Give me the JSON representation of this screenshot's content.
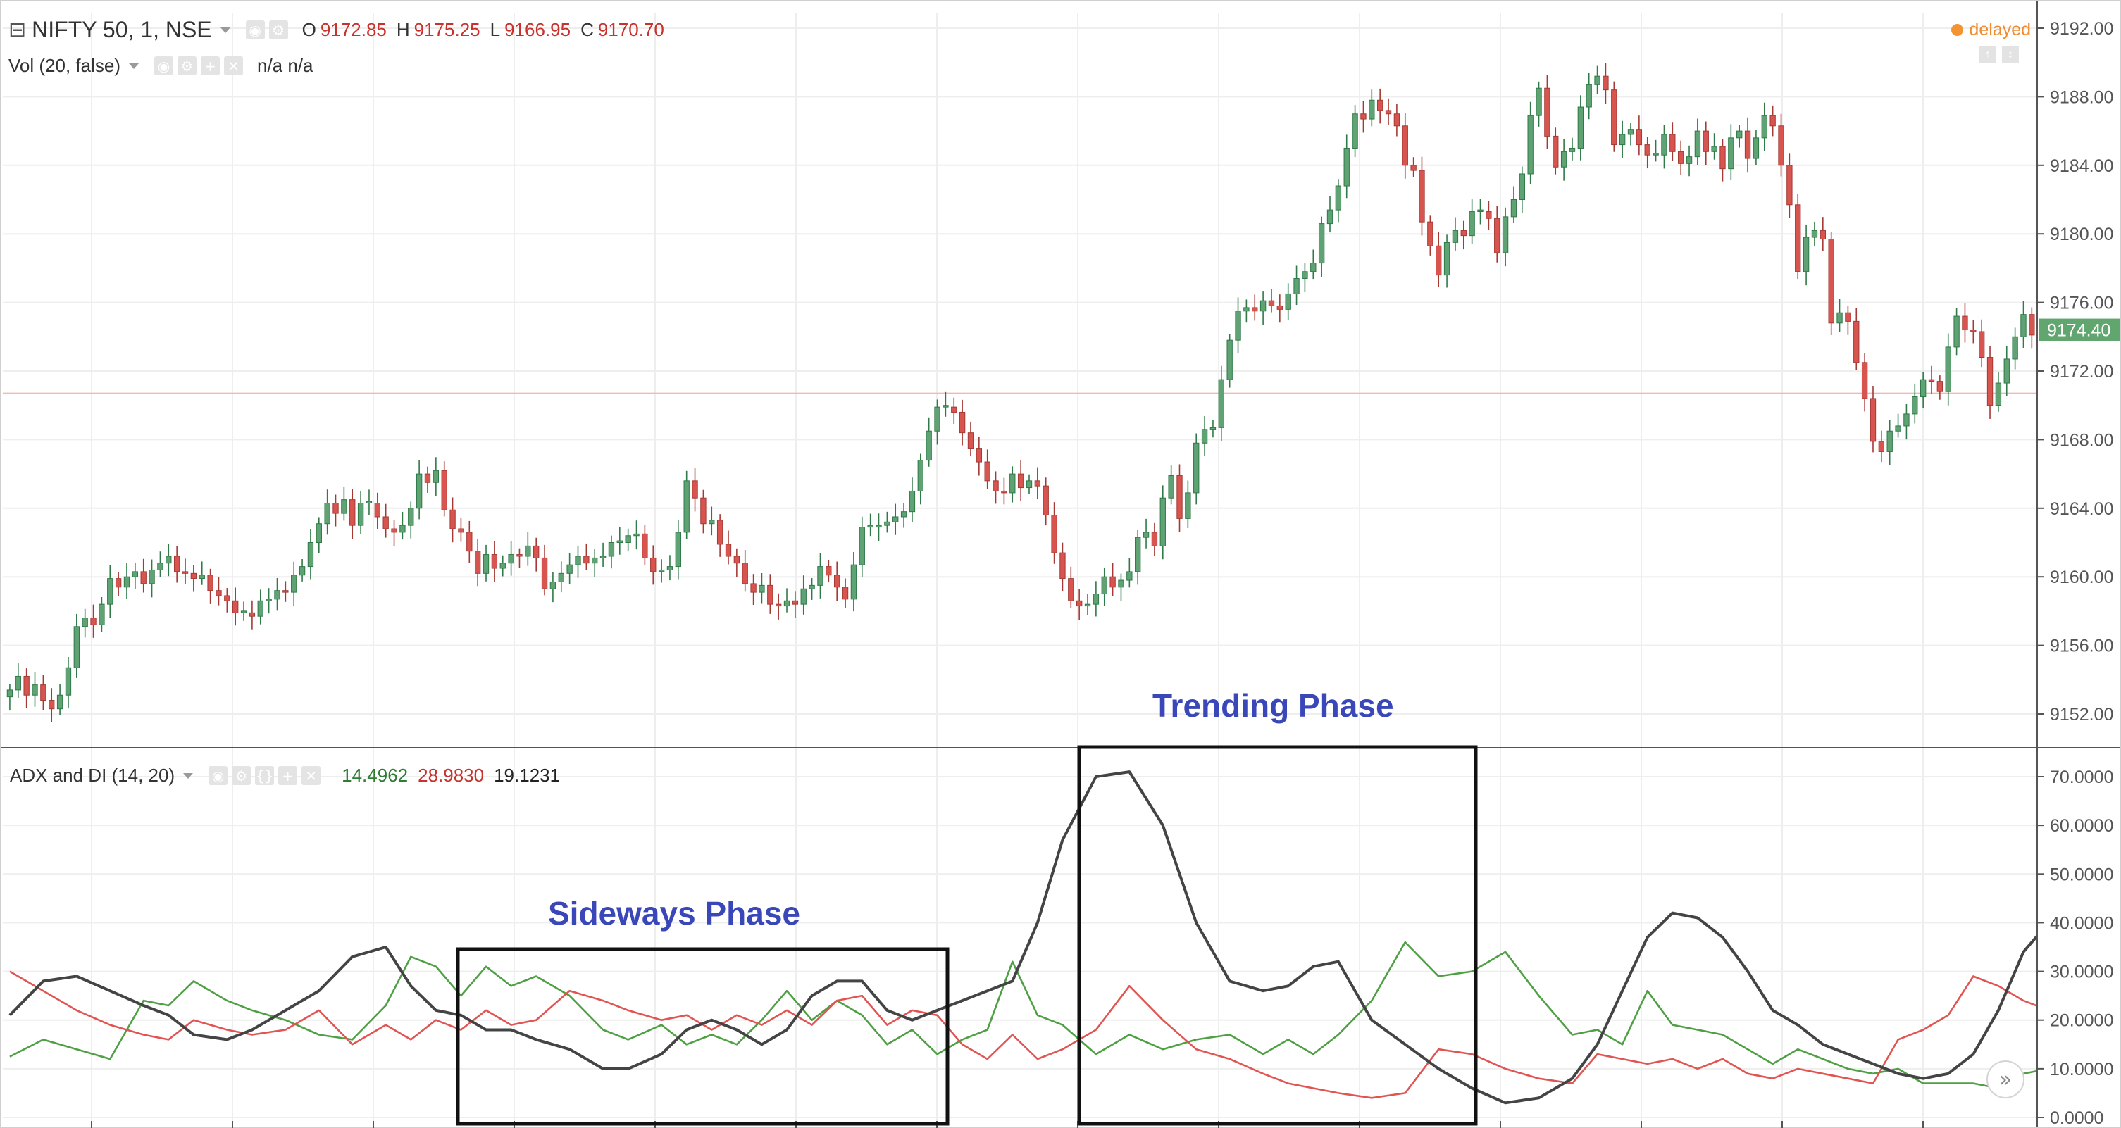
{
  "symbol": {
    "collapse_icon": "minus-box-icon",
    "title": "NIFTY 50, 1, NSE",
    "ohlc": [
      {
        "k": "O",
        "v": "9172.85"
      },
      {
        "k": "H",
        "v": "9175.25"
      },
      {
        "k": "L",
        "v": "9166.95"
      },
      {
        "k": "C",
        "v": "9170.70"
      }
    ],
    "status": "delayed"
  },
  "volume": {
    "label": "Vol (20, false)",
    "values": "n/a n/a"
  },
  "adx": {
    "label": "ADX and DI (14, 20)",
    "plus_di": "14.4962",
    "minus_di": "28.9830",
    "adx": "19.1231"
  },
  "colors": {
    "up": "#5fa273",
    "up_dark": "#2f7a48",
    "down": "#d8544f",
    "down_dark": "#a53a35",
    "plus_di": "#4f9f44",
    "minus_di": "#e05552",
    "adx": "#444444",
    "grid": "#eeeeee",
    "axis_text": "#555555",
    "last_price_bg": "#62a66f",
    "reference_line": "#f2b8b8",
    "annotation": "#3a47b8",
    "value_green": "#2e7d32",
    "value_red": "#c8312c"
  },
  "annotations": {
    "sideways": "Sideways Phase",
    "trending": "Trending Phase"
  },
  "forward_icon": "double-chevron-right-icon",
  "chart_data": [
    {
      "type": "candlestick",
      "title": "NIFTY 50, 1, NSE",
      "ylim": [
        9150,
        9192
      ],
      "y_ticks": [
        "9152.00",
        "9156.00",
        "9160.00",
        "9164.00",
        "9168.00",
        "9172.00",
        "9176.00",
        "9180.00",
        "9184.00",
        "9188.00",
        "9192.00"
      ],
      "last_price": "9174.40",
      "reference_price": 9170.7,
      "close": [
        9153.4,
        9154.2,
        9153.1,
        9153.7,
        9152.8,
        9152.3,
        9153.1,
        9154.7,
        9157.1,
        9157.6,
        9157.2,
        9158.4,
        9159.9,
        9159.4,
        9160.0,
        9160.3,
        9159.6,
        9160.4,
        9160.8,
        9161.2,
        9160.3,
        9160.2,
        9159.9,
        9160.1,
        9159.2,
        9158.9,
        9158.6,
        9157.9,
        9157.9,
        9157.7,
        9158.6,
        9158.7,
        9159.2,
        9159.1,
        9160.1,
        9160.6,
        9162.0,
        9163.1,
        9164.3,
        9163.7,
        9164.5,
        9163.0,
        9164.3,
        9164.3,
        9163.5,
        9162.8,
        9162.6,
        9163.0,
        9164.0,
        9166.0,
        9165.5,
        9166.2,
        9163.9,
        9162.8,
        9162.6,
        9161.5,
        9160.2,
        9161.3,
        9160.5,
        9160.8,
        9161.3,
        9161.2,
        9161.8,
        9161.1,
        9159.3,
        9159.7,
        9160.2,
        9160.7,
        9161.2,
        9160.8,
        9161.1,
        9161.2,
        9162.0,
        9162.0,
        9162.4,
        9162.5,
        9161.1,
        9160.3,
        9160.4,
        9160.6,
        9162.6,
        9165.6,
        9164.6,
        9163.1,
        9163.3,
        9161.9,
        9161.2,
        9160.8,
        9159.6,
        9159.1,
        9159.5,
        9158.4,
        9158.3,
        9158.6,
        9158.4,
        9159.3,
        9159.5,
        9160.6,
        9160.1,
        9159.4,
        9158.7,
        9160.7,
        9162.9,
        9162.9,
        9163.0,
        9163.2,
        9163.5,
        9163.8,
        9165.0,
        9166.8,
        9168.5,
        9169.9,
        9169.9,
        9169.6,
        9168.4,
        9167.5,
        9166.7,
        9165.6,
        9165.0,
        9164.9,
        9166.0,
        9165.2,
        9165.6,
        9165.3,
        9163.6,
        9161.4,
        9159.9,
        9158.6,
        9158.3,
        9158.4,
        9159.0,
        9160.0,
        9159.4,
        9159.8,
        9160.3,
        9162.3,
        9162.6,
        9161.8,
        9164.6,
        9165.9,
        9163.4,
        9164.9,
        9167.8,
        9168.6,
        9168.7,
        9171.5,
        9173.8,
        9175.5,
        9175.7,
        9175.5,
        9176.1,
        9175.8,
        9175.6,
        9176.5,
        9177.4,
        9177.8,
        9178.3,
        9180.6,
        9181.4,
        9182.8,
        9185.0,
        9187.0,
        9186.7,
        9187.8,
        9187.2,
        9187.0,
        9186.3,
        9184.0,
        9183.7,
        9180.7,
        9179.3,
        9177.6,
        9179.5,
        9180.2,
        9179.9,
        9181.3,
        9181.3,
        9180.9,
        9178.9,
        9181.0,
        9182.0,
        9183.5,
        9186.9,
        9188.5,
        9185.7,
        9183.9,
        9184.8,
        9185.0,
        9187.4,
        9188.7,
        9189.2,
        9188.4,
        9185.2,
        9185.8,
        9186.1,
        9185.2,
        9184.6,
        9184.6,
        9185.8,
        9184.8,
        9184.1,
        9184.5,
        9186.0,
        9184.8,
        9185.1,
        9183.8,
        9185.6,
        9186.0,
        9184.4,
        9185.6,
        9186.9,
        9186.3,
        9184.0,
        9181.7,
        9177.8,
        9179.8,
        9180.2,
        9179.7,
        9174.8,
        9175.4,
        9174.9,
        9172.5,
        9170.4,
        9167.9,
        9167.3,
        9168.5,
        9168.8,
        9169.5,
        9170.5,
        9171.5,
        9171.4,
        9170.8,
        9173.4,
        9175.2,
        9174.4,
        9174.3,
        9172.8,
        9170.0,
        9171.3,
        9172.7,
        9174.0,
        9175.3,
        9174.1,
        9174.4,
        9174.4
      ],
      "candle_count": 260,
      "xlabel": "",
      "ylabel": ""
    },
    {
      "type": "line",
      "title": "ADX and DI (14, 20)",
      "ylim": [
        0,
        73
      ],
      "y_ticks": [
        "0.0000",
        "10.0000",
        "20.0000",
        "30.0000",
        "40.0000",
        "50.0000",
        "60.0000",
        "70.0000"
      ],
      "series": [
        {
          "name": "+DI",
          "x": [
            0,
            4,
            8,
            12,
            16,
            19,
            22,
            26,
            29,
            33,
            37,
            41,
            45,
            48,
            51,
            54,
            57,
            60,
            63,
            67,
            71,
            74,
            78,
            81,
            84,
            87,
            90,
            93,
            96,
            99,
            102,
            105,
            108,
            111,
            114,
            117,
            120,
            123,
            126,
            130,
            134,
            138,
            142,
            146,
            150,
            153,
            156,
            159,
            163,
            167,
            171,
            175,
            179,
            183,
            187,
            190,
            193,
            196,
            199,
            202,
            205,
            208,
            211,
            214,
            217,
            220,
            223,
            226,
            229,
            232,
            235,
            238,
            241,
            244,
            247,
            250,
            253,
            256,
            259
          ],
          "values": [
            12.5,
            16,
            14,
            12,
            24,
            23,
            28,
            24,
            22,
            20,
            17,
            16,
            23,
            33,
            31,
            25,
            31,
            27,
            29,
            25,
            18,
            16,
            19,
            15,
            17,
            15,
            20,
            26,
            20,
            24,
            21,
            15,
            18,
            13,
            16,
            18,
            32,
            21,
            19,
            13,
            17,
            14,
            16,
            17,
            13,
            16,
            13,
            17,
            24,
            36,
            29,
            30,
            34,
            25,
            17,
            18,
            15,
            26,
            19,
            18,
            17,
            14,
            11,
            14,
            12,
            10,
            9,
            10,
            7,
            7,
            7,
            6,
            9,
            10,
            13,
            15,
            16,
            18,
            16
          ]
        },
        {
          "name": "-DI",
          "x": [
            0,
            4,
            8,
            12,
            16,
            19,
            22,
            26,
            29,
            33,
            37,
            41,
            45,
            48,
            51,
            54,
            57,
            60,
            63,
            67,
            71,
            74,
            78,
            81,
            84,
            87,
            90,
            93,
            96,
            99,
            102,
            105,
            108,
            111,
            114,
            117,
            120,
            123,
            126,
            130,
            134,
            138,
            142,
            146,
            150,
            153,
            156,
            159,
            163,
            167,
            171,
            175,
            179,
            183,
            187,
            190,
            193,
            196,
            199,
            202,
            205,
            208,
            211,
            214,
            217,
            220,
            223,
            226,
            229,
            232,
            235,
            238,
            241,
            244,
            247,
            250,
            253,
            256,
            259
          ],
          "values": [
            30,
            26,
            22,
            19,
            17,
            16,
            20,
            18,
            17,
            18,
            22,
            15,
            19,
            16,
            20,
            18,
            22,
            19,
            20,
            26,
            24,
            22,
            20,
            21,
            18,
            21,
            19,
            22,
            19,
            24,
            25,
            19,
            22,
            21,
            15,
            12,
            17,
            12,
            14,
            18,
            27,
            20,
            14,
            12,
            9,
            7,
            6,
            5,
            4,
            5,
            14,
            13,
            10,
            8,
            7,
            13,
            12,
            11,
            12,
            10,
            12,
            9,
            8,
            10,
            9,
            8,
            7,
            16,
            18,
            21,
            29,
            27,
            24,
            22,
            19,
            25,
            22,
            20,
            23
          ]
        },
        {
          "name": "ADX",
          "x": [
            0,
            4,
            8,
            12,
            16,
            19,
            22,
            26,
            29,
            33,
            37,
            41,
            45,
            48,
            51,
            54,
            57,
            60,
            63,
            67,
            71,
            74,
            78,
            81,
            84,
            87,
            90,
            93,
            96,
            99,
            102,
            105,
            108,
            111,
            114,
            117,
            120,
            123,
            126,
            130,
            134,
            138,
            142,
            146,
            150,
            153,
            156,
            159,
            163,
            167,
            171,
            175,
            179,
            183,
            187,
            190,
            193,
            196,
            199,
            202,
            205,
            208,
            211,
            214,
            217,
            220,
            223,
            226,
            229,
            232,
            235,
            238,
            241,
            244,
            247,
            250,
            253,
            256,
            259
          ],
          "values": [
            21,
            28,
            29,
            26,
            23,
            21,
            17,
            16,
            18,
            22,
            26,
            33,
            35,
            27,
            22,
            21,
            18,
            18,
            16,
            14,
            10,
            10,
            13,
            18,
            20,
            18,
            15,
            18,
            25,
            28,
            28,
            22,
            20,
            22,
            24,
            26,
            28,
            40,
            57,
            70,
            71,
            60,
            40,
            28,
            26,
            27,
            31,
            32,
            20,
            15,
            10,
            6,
            3,
            4,
            8,
            15,
            26,
            37,
            42,
            41,
            37,
            30,
            22,
            19,
            15,
            13,
            11,
            9,
            8,
            9,
            13,
            22,
            34,
            40,
            42,
            39,
            33,
            27,
            20
          ]
        }
      ],
      "xlabel": "",
      "ylabel": ""
    }
  ]
}
